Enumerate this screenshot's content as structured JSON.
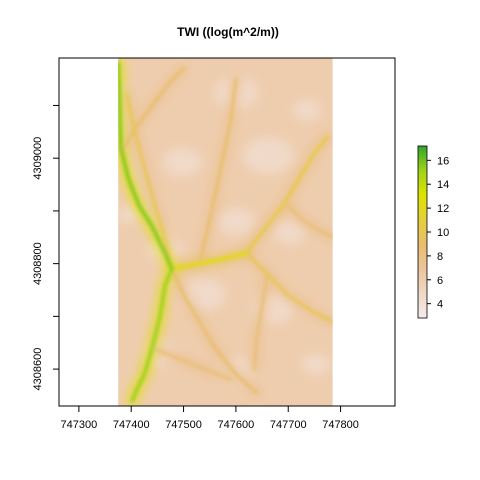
{
  "title": "TWI ((log(m^2/m))",
  "x_axis": {
    "ticks": [
      "747300",
      "747400",
      "747500",
      "747600",
      "747700",
      "747800"
    ]
  },
  "y_axis": {
    "ticks": [
      "4308600",
      "4308800",
      "4309000"
    ]
  },
  "colorbar": {
    "ticks": [
      "4",
      "6",
      "8",
      "10",
      "12",
      "14",
      "16"
    ],
    "min": 2.8,
    "max": 17.2,
    "colors": [
      "#f5eaf0",
      "#f0d8c4",
      "#ecc49d",
      "#e8be6e",
      "#e6cf3a",
      "#dde400",
      "#a0d21c",
      "#2fa82a"
    ]
  },
  "chart_data": {
    "type": "heatmap",
    "title": "TWI ((log(m^2/m))",
    "xlim": [
      747262,
      747904
    ],
    "ylim": [
      4308530,
      4309190
    ],
    "raster_extent": {
      "x": [
        747375,
        747785
      ],
      "y": [
        4308530,
        4309190
      ]
    },
    "value_range": [
      2.8,
      17.2
    ],
    "colorbar_ticks": [
      4,
      6,
      8,
      10,
      12,
      14,
      16
    ],
    "background_twi": 6,
    "channels": [
      {
        "twi": 15.5,
        "points": [
          [
            747375,
            4309180
          ],
          [
            747378,
            4309090
          ],
          [
            747380,
            4309020
          ],
          [
            747395,
            4308960
          ],
          [
            747415,
            4308910
          ],
          [
            747440,
            4308870
          ],
          [
            747465,
            4308820
          ],
          [
            747478,
            4308790
          ]
        ]
      },
      {
        "twi": 15,
        "points": [
          [
            747478,
            4308790
          ],
          [
            747465,
            4308760
          ],
          [
            747455,
            4308700
          ],
          [
            747440,
            4308640
          ],
          [
            747425,
            4308590
          ],
          [
            747410,
            4308560
          ],
          [
            747402,
            4308540
          ]
        ]
      },
      {
        "twi": 12,
        "points": [
          [
            747478,
            4308790
          ],
          [
            747530,
            4308800
          ],
          [
            747580,
            4308810
          ],
          [
            747620,
            4308820
          ]
        ]
      },
      {
        "twi": 10.5,
        "points": [
          [
            747620,
            4308820
          ],
          [
            747650,
            4308860
          ],
          [
            747690,
            4308910
          ],
          [
            747720,
            4308960
          ],
          [
            747750,
            4309010
          ],
          [
            747775,
            4309040
          ]
        ]
      },
      {
        "twi": 10,
        "points": [
          [
            747620,
            4308820
          ],
          [
            747660,
            4308780
          ],
          [
            747700,
            4308740
          ],
          [
            747745,
            4308710
          ],
          [
            747785,
            4308690
          ]
        ]
      },
      {
        "twi": 10,
        "points": [
          [
            747478,
            4308790
          ],
          [
            747460,
            4308860
          ],
          [
            747440,
            4308930
          ],
          [
            747420,
            4309000
          ],
          [
            747405,
            4309060
          ],
          [
            747392,
            4309120
          ]
        ]
      },
      {
        "twi": 9,
        "points": [
          [
            747530,
            4308800
          ],
          [
            747545,
            4308860
          ],
          [
            747560,
            4308930
          ],
          [
            747575,
            4309000
          ],
          [
            747590,
            4309070
          ],
          [
            747600,
            4309150
          ]
        ]
      },
      {
        "twi": 9,
        "points": [
          [
            747478,
            4308790
          ],
          [
            747500,
            4308740
          ],
          [
            747530,
            4308690
          ],
          [
            747560,
            4308640
          ],
          [
            747600,
            4308590
          ],
          [
            747640,
            4308555
          ]
        ]
      },
      {
        "twi": 9,
        "points": [
          [
            747380,
            4309010
          ],
          [
            747410,
            4309060
          ],
          [
            747440,
            4309100
          ],
          [
            747470,
            4309140
          ],
          [
            747500,
            4309170
          ]
        ]
      },
      {
        "twi": 8.5,
        "points": [
          [
            747700,
            4308910
          ],
          [
            747730,
            4308880
          ],
          [
            747765,
            4308860
          ],
          [
            747785,
            4308850
          ]
        ]
      },
      {
        "twi": 8.5,
        "points": [
          [
            747440,
            4308640
          ],
          [
            747490,
            4308620
          ],
          [
            747540,
            4308600
          ],
          [
            747590,
            4308580
          ]
        ]
      },
      {
        "twi": 8.5,
        "points": [
          [
            747660,
            4308780
          ],
          [
            747650,
            4308720
          ],
          [
            747640,
            4308660
          ],
          [
            747635,
            4308600
          ]
        ]
      }
    ]
  }
}
